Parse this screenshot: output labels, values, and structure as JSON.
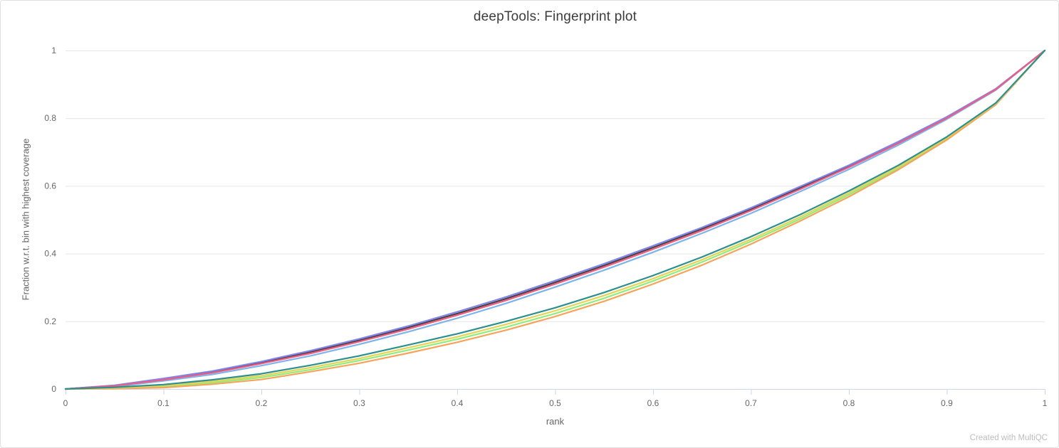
{
  "watermark": {
    "text": "Created with MultiQC"
  },
  "chart_data": {
    "type": "line",
    "title": "deepTools: Fingerprint plot",
    "xlabel": "rank",
    "ylabel": "Fraction w.r.t. bin with highest coverage",
    "xlim": [
      0,
      1
    ],
    "ylim": [
      0,
      1
    ],
    "xticks": [
      "0",
      "0.1",
      "0.2",
      "0.3",
      "0.4",
      "0.5",
      "0.6",
      "0.7",
      "0.8",
      "0.9",
      "1"
    ],
    "yticks": [
      "0",
      "0.2",
      "0.4",
      "0.6",
      "0.8",
      "1"
    ],
    "grid": "horizontal-only",
    "legend_position": "none",
    "axis_color": "#ccd6eb",
    "grid_color": "#e6e6e6",
    "label_color": "#666666",
    "title_color": "#3c3c3c",
    "watermark_color": "#bdbdbd",
    "line_width": 2.2,
    "x": [
      0,
      0.05,
      0.1,
      0.15,
      0.2,
      0.25,
      0.3,
      0.35,
      0.4,
      0.45,
      0.5,
      0.55,
      0.6,
      0.65,
      0.7,
      0.75,
      0.8,
      0.85,
      0.9,
      0.95,
      1
    ],
    "series": [
      {
        "name": "light-blue",
        "color": "#7cb5ec",
        "values": [
          0,
          0.007,
          0.024,
          0.043,
          0.069,
          0.098,
          0.132,
          0.169,
          0.209,
          0.253,
          0.301,
          0.351,
          0.404,
          0.46,
          0.519,
          0.583,
          0.649,
          0.72,
          0.797,
          0.883,
          1
        ]
      },
      {
        "name": "dark-gray",
        "color": "#434348",
        "values": [
          0,
          0.01,
          0.029,
          0.051,
          0.078,
          0.109,
          0.144,
          0.182,
          0.223,
          0.267,
          0.315,
          0.365,
          0.418,
          0.473,
          0.531,
          0.594,
          0.658,
          0.728,
          0.802,
          0.886,
          1
        ]
      },
      {
        "name": "green",
        "color": "#90ed7d",
        "values": [
          0,
          0.002,
          0.007,
          0.018,
          0.034,
          0.057,
          0.084,
          0.115,
          0.147,
          0.183,
          0.223,
          0.268,
          0.319,
          0.375,
          0.436,
          0.502,
          0.574,
          0.651,
          0.739,
          0.842,
          1
        ]
      },
      {
        "name": "orange",
        "color": "#f7a35c",
        "values": [
          0,
          0.001,
          0.004,
          0.014,
          0.028,
          0.051,
          0.076,
          0.106,
          0.138,
          0.174,
          0.214,
          0.259,
          0.31,
          0.366,
          0.428,
          0.496,
          0.568,
          0.647,
          0.736,
          0.84,
          1
        ]
      },
      {
        "name": "purple",
        "color": "#8085e9",
        "values": [
          0,
          0.011,
          0.031,
          0.053,
          0.081,
          0.113,
          0.148,
          0.186,
          0.228,
          0.272,
          0.32,
          0.37,
          0.423,
          0.477,
          0.535,
          0.598,
          0.661,
          0.73,
          0.804,
          0.887,
          1
        ]
      },
      {
        "name": "pink",
        "color": "#f15c80",
        "values": [
          0,
          0.009,
          0.027,
          0.048,
          0.075,
          0.105,
          0.14,
          0.177,
          0.218,
          0.262,
          0.31,
          0.36,
          0.413,
          0.468,
          0.527,
          0.59,
          0.655,
          0.725,
          0.8,
          0.885,
          1
        ]
      },
      {
        "name": "yellow",
        "color": "#e4d354",
        "values": [
          0,
          0.003,
          0.01,
          0.022,
          0.039,
          0.063,
          0.09,
          0.122,
          0.154,
          0.191,
          0.231,
          0.276,
          0.326,
          0.382,
          0.442,
          0.508,
          0.579,
          0.655,
          0.742,
          0.843,
          1
        ]
      },
      {
        "name": "teal",
        "color": "#2b908f",
        "values": [
          0,
          0.005,
          0.013,
          0.027,
          0.045,
          0.07,
          0.098,
          0.13,
          0.163,
          0.2,
          0.24,
          0.285,
          0.335,
          0.39,
          0.45,
          0.515,
          0.585,
          0.66,
          0.745,
          0.845,
          1
        ]
      }
    ]
  }
}
